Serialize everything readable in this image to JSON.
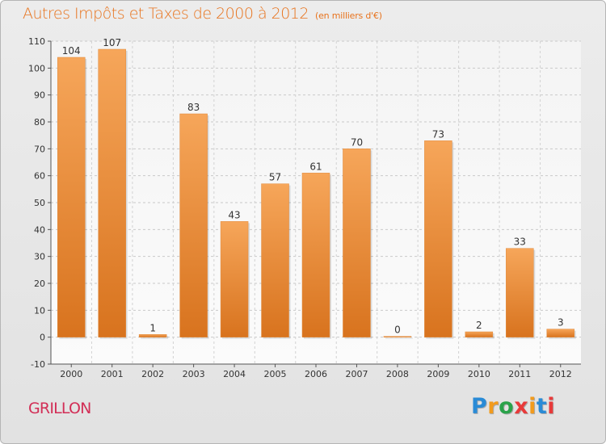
{
  "header": {
    "title": "Autres Impôts et Taxes de 2000 à 2012",
    "subtitle": "(en milliers d'€)"
  },
  "footer": {
    "commune": "GRILLON",
    "logo_text": "Proxiti"
  },
  "colors": {
    "bar_light": "#f6a65a",
    "bar_dark": "#d8731e",
    "accent": "#e8731d",
    "commune": "#d22e56"
  },
  "chart_data": {
    "type": "bar",
    "title": "Autres Impôts et Taxes de 2000 à 2012",
    "subtitle": "(en milliers d'€)",
    "xlabel": "",
    "ylabel": "",
    "categories": [
      "2000",
      "2001",
      "2002",
      "2003",
      "2004",
      "2005",
      "2006",
      "2007",
      "2008",
      "2009",
      "2010",
      "2011",
      "2012"
    ],
    "values": [
      104,
      107,
      1,
      83,
      43,
      57,
      61,
      70,
      0,
      73,
      2,
      33,
      3
    ],
    "ylim": [
      -10,
      110
    ],
    "yticks": [
      -10,
      0,
      10,
      20,
      30,
      40,
      50,
      60,
      70,
      80,
      90,
      100,
      110
    ],
    "grid": true,
    "legend": "none"
  }
}
